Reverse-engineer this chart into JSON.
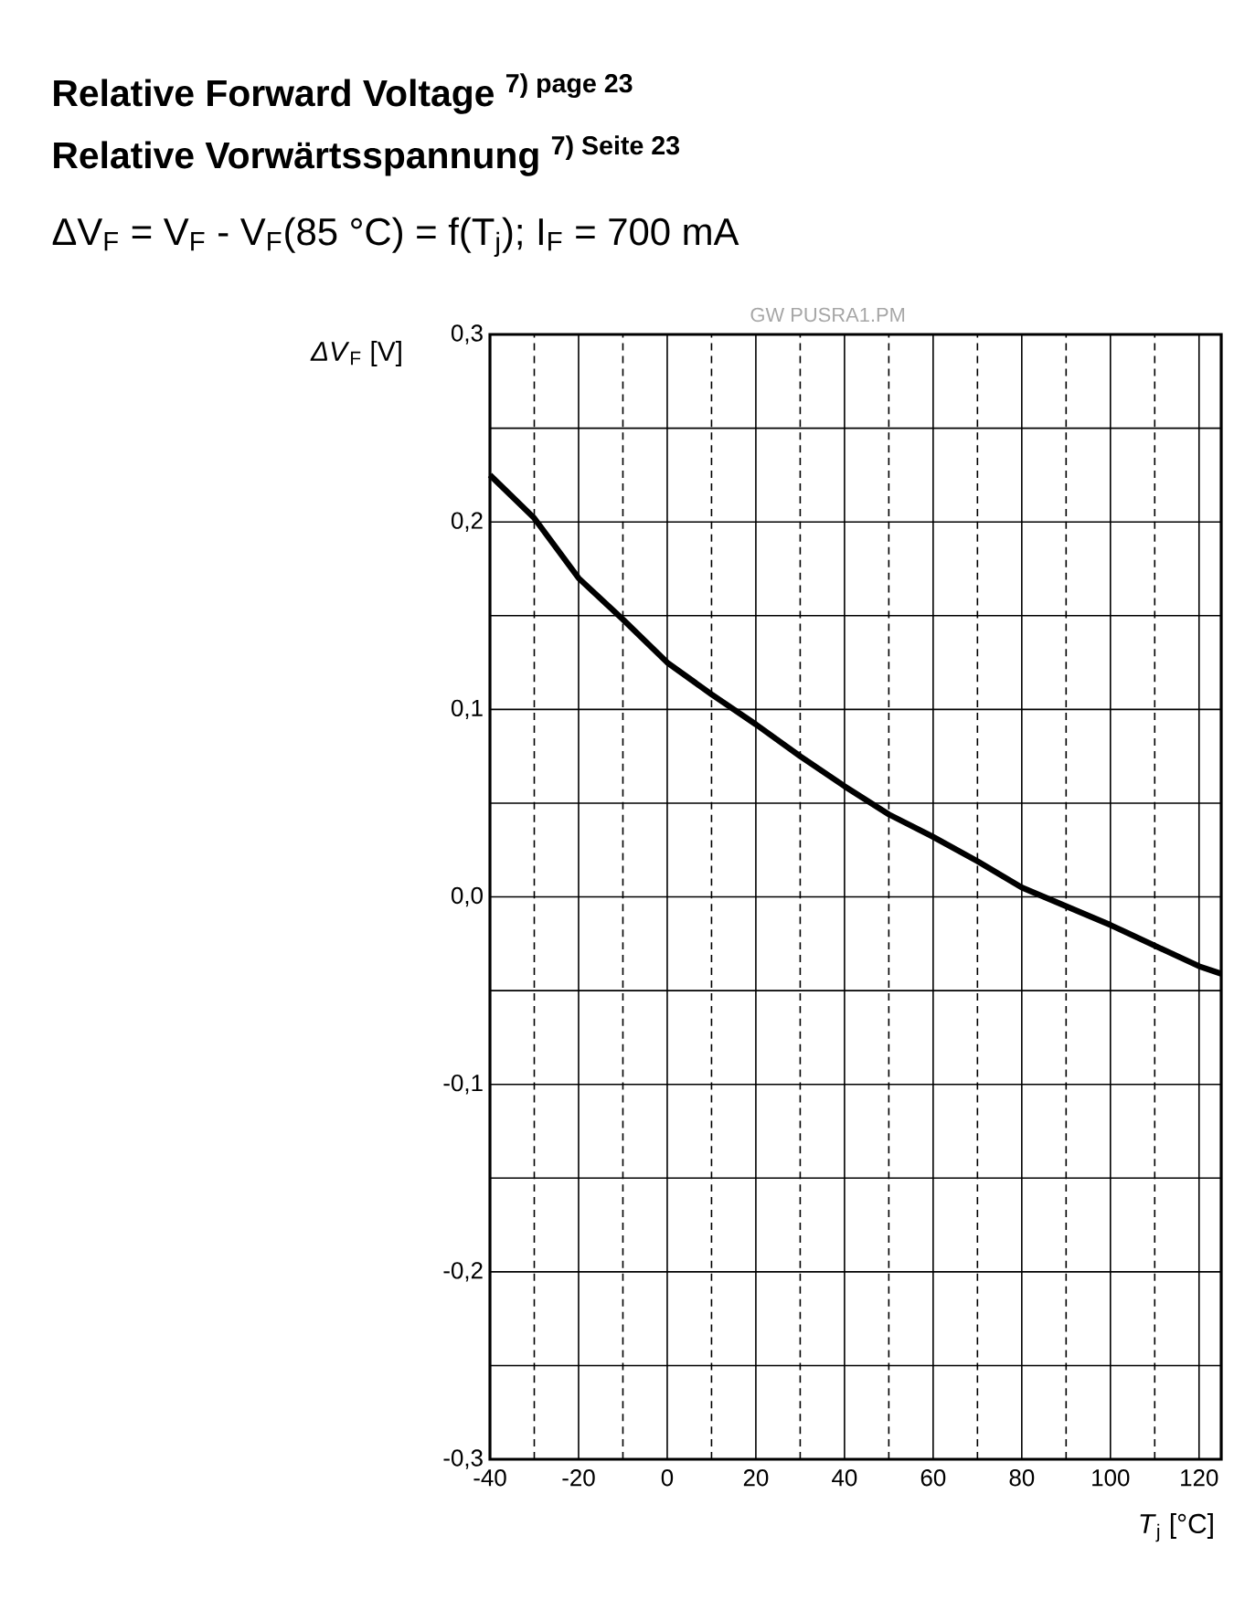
{
  "chart_data": {
    "type": "line",
    "title": "Relative Forward Voltage $^{7) page 23}$",
    "subtitle": "Relative Vorwärtsspannung $^{7) Seite 23}$",
    "annotations": [
      "ΔV$_{F}$ = V$_{F}$ - V$_{F}$(85 °C) = f(T$_{j}$); I$_{F}$ = 700 mA",
      "GW PUSRA1.PM"
    ],
    "xlabel": "*T*$_{j}$ [°C]",
    "ylabel": "*ΔV*$_{F}$ [V]",
    "x": [
      -40,
      -30,
      -20,
      -10,
      0,
      10,
      20,
      30,
      40,
      50,
      60,
      70,
      80,
      90,
      100,
      110,
      120,
      125
    ],
    "series": [
      {
        "color": "#000000",
        "values": [
          0.225,
          0.202,
          0.17,
          0.148,
          0.125,
          0.108,
          0.092,
          0.075,
          0.059,
          0.044,
          0.032,
          0.019,
          0.005,
          -0.005,
          -0.015,
          -0.026,
          -0.037,
          -0.041
        ]
      }
    ],
    "xlim": [
      -40,
      125
    ],
    "ylim": [
      -0.3,
      0.3
    ],
    "xticks": [
      -40,
      {
        "value": -30,
        "label": null
      },
      -20,
      {
        "value": -10,
        "label": null
      },
      0,
      {
        "value": 10,
        "label": null
      },
      20,
      {
        "value": 30,
        "label": null
      },
      40,
      {
        "value": 50,
        "label": null
      },
      60,
      {
        "value": 70,
        "label": null
      },
      80,
      {
        "value": 90,
        "label": null
      },
      100,
      {
        "value": 110,
        "label": null
      },
      120
    ],
    "yticks": [
      {
        "value": -0.3,
        "label": "-0,3"
      },
      {
        "value": -0.25,
        "label": null
      },
      {
        "value": -0.2,
        "label": "-0,2"
      },
      {
        "value": -0.15,
        "label": null
      },
      {
        "value": -0.1,
        "label": "-0,1"
      },
      {
        "value": -0.05,
        "label": null
      },
      {
        "value": 0,
        "label": "0,0"
      },
      {
        "value": 0.05,
        "label": null
      },
      {
        "value": 0.1,
        "label": "0,1"
      },
      {
        "value": 0.15,
        "label": null
      },
      {
        "value": 0.2,
        "label": "0,2"
      },
      {
        "value": 0.25,
        "label": null
      },
      {
        "value": 0.3,
        "label": "0,3"
      }
    ],
    "grid": true,
    "line_style": "solid"
  }
}
